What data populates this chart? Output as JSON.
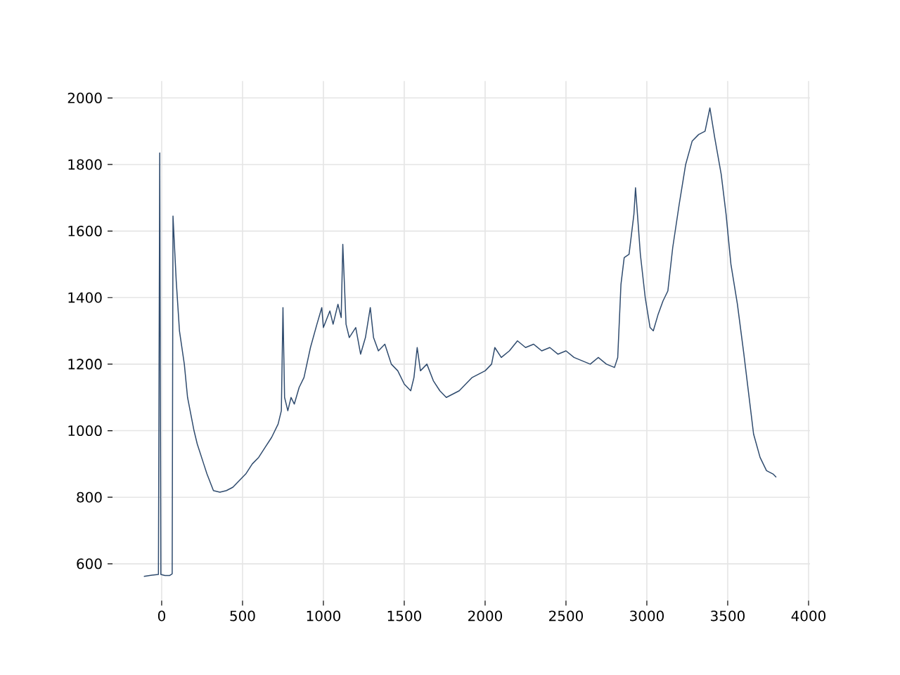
{
  "chart_data": {
    "type": "line",
    "x": [
      -110,
      -60,
      -20,
      -12,
      -5,
      20,
      50,
      65,
      70,
      90,
      110,
      140,
      160,
      200,
      220,
      260,
      280,
      320,
      360,
      400,
      440,
      480,
      520,
      560,
      600,
      640,
      680,
      720,
      740,
      750,
      760,
      780,
      800,
      820,
      850,
      880,
      920,
      960,
      990,
      1000,
      1040,
      1060,
      1090,
      1110,
      1120,
      1140,
      1160,
      1200,
      1230,
      1260,
      1290,
      1310,
      1340,
      1380,
      1420,
      1460,
      1500,
      1540,
      1560,
      1580,
      1600,
      1640,
      1680,
      1720,
      1760,
      1800,
      1840,
      1880,
      1920,
      1960,
      2000,
      2040,
      2060,
      2100,
      2150,
      2200,
      2250,
      2300,
      2350,
      2400,
      2450,
      2500,
      2550,
      2600,
      2650,
      2700,
      2750,
      2800,
      2820,
      2840,
      2860,
      2890,
      2920,
      2930,
      2960,
      2990,
      3020,
      3040,
      3070,
      3100,
      3130,
      3160,
      3200,
      3240,
      3280,
      3320,
      3360,
      3390,
      3420,
      3460,
      3490,
      3520,
      3560,
      3600,
      3640,
      3660,
      3700,
      3740,
      3780,
      3800
    ],
    "series": [
      {
        "color": "#2f4b6e",
        "values": [
          562,
          566,
          568,
          1835,
          568,
          565,
          565,
          570,
          1645,
          1450,
          1300,
          1200,
          1100,
          1000,
          960,
          900,
          870,
          820,
          815,
          820,
          830,
          850,
          870,
          900,
          920,
          950,
          980,
          1020,
          1060,
          1370,
          1100,
          1060,
          1100,
          1080,
          1130,
          1160,
          1250,
          1320,
          1370,
          1310,
          1360,
          1320,
          1380,
          1340,
          1560,
          1320,
          1280,
          1310,
          1230,
          1280,
          1370,
          1280,
          1240,
          1260,
          1200,
          1180,
          1140,
          1120,
          1160,
          1250,
          1180,
          1200,
          1150,
          1120,
          1100,
          1110,
          1120,
          1140,
          1160,
          1170,
          1180,
          1200,
          1250,
          1220,
          1240,
          1270,
          1250,
          1260,
          1240,
          1250,
          1230,
          1240,
          1220,
          1210,
          1200,
          1220,
          1200,
          1190,
          1220,
          1440,
          1520,
          1530,
          1650,
          1730,
          1530,
          1400,
          1310,
          1300,
          1350,
          1390,
          1420,
          1550,
          1680,
          1800,
          1870,
          1890,
          1900,
          1970,
          1880,
          1770,
          1650,
          1500,
          1380,
          1230,
          1070,
          990,
          920,
          880,
          870,
          860
        ]
      }
    ],
    "xlim": [
      -304,
      4009
    ],
    "ylim": [
      489,
      2051
    ],
    "xticks": [
      0,
      500,
      1000,
      1500,
      2000,
      2500,
      3000,
      3500,
      4000
    ],
    "yticks": [
      600,
      800,
      1000,
      1200,
      1400,
      1600,
      1800,
      2000
    ],
    "grid": true,
    "marker": "none",
    "line_style": "solid"
  }
}
